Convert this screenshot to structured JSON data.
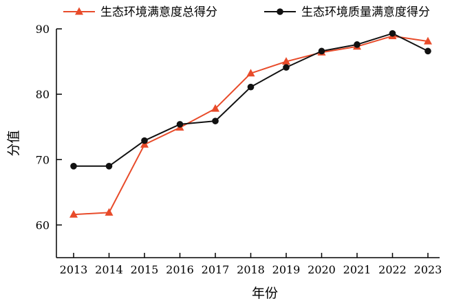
{
  "chart_data": {
    "type": "line",
    "categories": [
      "2013",
      "2014",
      "2015",
      "2016",
      "2017",
      "2018",
      "2019",
      "2020",
      "2021",
      "2022",
      "2023"
    ],
    "series": [
      {
        "name": "生态环境满意度总得分",
        "color": "#e84b2a",
        "marker": "triangle",
        "values": [
          61.6,
          61.9,
          72.3,
          74.9,
          77.8,
          83.2,
          85.0,
          86.4,
          87.3,
          88.9,
          88.1
        ]
      },
      {
        "name": "生态环境质量满意度得分",
        "color": "#111111",
        "marker": "circle",
        "values": [
          69.0,
          69.0,
          72.9,
          75.4,
          75.9,
          81.1,
          84.1,
          86.6,
          87.6,
          89.3,
          86.6
        ]
      }
    ],
    "xlabel": "年份",
    "ylabel": "分值",
    "ylim": [
      55,
      90
    ],
    "yticks": [
      60,
      70,
      80,
      90
    ],
    "grid": false,
    "legend_position": "top"
  }
}
